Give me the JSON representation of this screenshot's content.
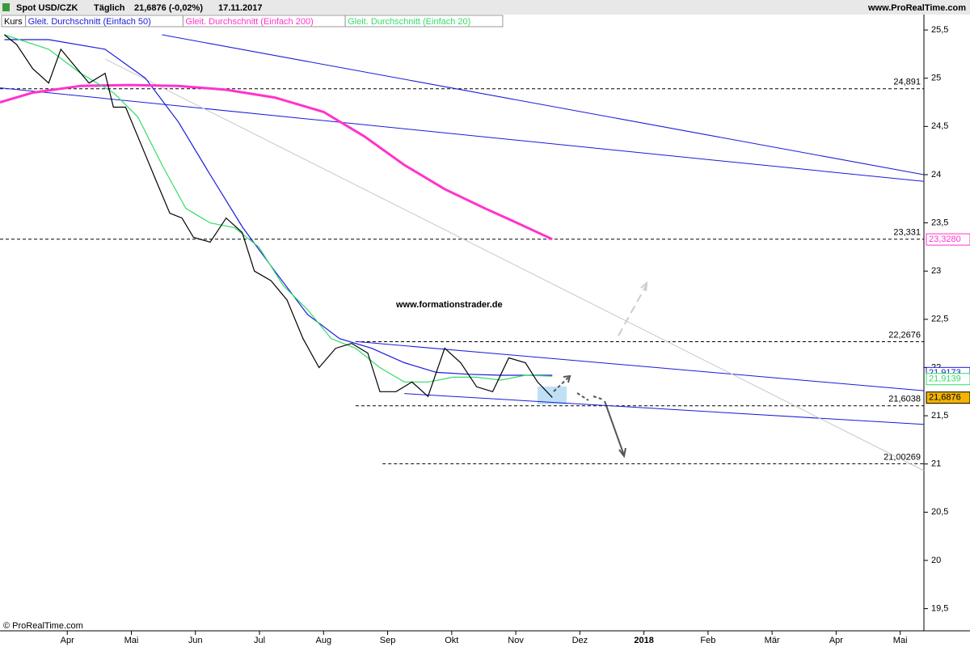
{
  "chart_data": {
    "type": "line",
    "title": "Spot USD/CZK",
    "interval": "Täglich",
    "last_quote": "21,6876 (-0,02%)",
    "date": "17.11.2017",
    "source": "www.ProRealTime.com",
    "watermark": "www.formationstrader.de",
    "copyright": "© ProRealTime.com",
    "xlim": [
      2.95,
      17.37
    ],
    "xticks": [
      {
        "value": 4,
        "label": "Apr"
      },
      {
        "value": 5,
        "label": "Mai"
      },
      {
        "value": 6,
        "label": "Jun"
      },
      {
        "value": 7,
        "label": "Jul"
      },
      {
        "value": 8,
        "label": "Aug"
      },
      {
        "value": 9,
        "label": "Sep"
      },
      {
        "value": 10,
        "label": "Okt"
      },
      {
        "value": 11,
        "label": "Nov"
      },
      {
        "value": 12,
        "label": "Dez"
      },
      {
        "value": 13,
        "label": "2018"
      },
      {
        "value": 14,
        "label": "Feb"
      },
      {
        "value": 15,
        "label": "Mär"
      },
      {
        "value": 16,
        "label": "Apr"
      },
      {
        "value": 17,
        "label": "Mai"
      }
    ],
    "ylim": [
      19.27,
      25.66
    ],
    "yticks": [
      {
        "value": 19.5,
        "label": "19,5"
      },
      20,
      {
        "value": 20.5,
        "label": "20,5"
      },
      21,
      {
        "value": 21.5,
        "label": "21,5"
      },
      22,
      {
        "value": 22.5,
        "label": "22,5"
      },
      23,
      {
        "value": 23.5,
        "label": "23,5"
      },
      24,
      {
        "value": 24.5,
        "label": "24,5"
      },
      25,
      {
        "value": 25.5,
        "label": "25,5"
      }
    ],
    "series": [
      {
        "name": "Kurs",
        "color": "#000000",
        "x": [
          3.02,
          3.21,
          3.46,
          3.71,
          3.9,
          4.15,
          4.34,
          4.59,
          4.72,
          4.91,
          5.16,
          5.41,
          5.6,
          5.79,
          5.97,
          6.23,
          6.48,
          6.73,
          6.92,
          7.18,
          7.43,
          7.68,
          7.93,
          8.19,
          8.44,
          8.69,
          8.88,
          9.13,
          9.38,
          9.63,
          9.89,
          10.14,
          10.39,
          10.64,
          10.89,
          11.15,
          11.34,
          11.57
        ],
        "values": [
          25.45,
          25.35,
          25.1,
          24.95,
          25.3,
          25.1,
          24.95,
          25.05,
          24.7,
          24.7,
          24.3,
          23.9,
          23.6,
          23.55,
          23.35,
          23.3,
          23.55,
          23.4,
          23.0,
          22.9,
          22.7,
          22.3,
          22.0,
          22.2,
          22.25,
          22.15,
          21.75,
          21.75,
          21.85,
          21.7,
          22.2,
          22.05,
          21.8,
          21.75,
          22.1,
          22.05,
          21.85,
          21.69
        ]
      },
      {
        "name": "Gleit. Durchschnitt (Einfach 50)",
        "color": "#1a1adb",
        "x": [
          3.02,
          3.71,
          4.59,
          5.22,
          5.73,
          6.23,
          6.74,
          7.24,
          7.75,
          8.25,
          8.75,
          9.26,
          9.76,
          10.27,
          10.77,
          11.15,
          11.57
        ],
        "values": [
          25.4,
          25.4,
          25.3,
          25.0,
          24.55,
          24.0,
          23.45,
          23.0,
          22.55,
          22.3,
          22.2,
          22.05,
          21.95,
          21.93,
          21.92,
          21.92,
          21.92
        ]
      },
      {
        "name": "Gleit. Durchschnitt (Einfach 200)",
        "color": "#ff33cc",
        "x": [
          2.95,
          3.46,
          4.21,
          4.97,
          5.73,
          6.48,
          7.24,
          8.0,
          8.63,
          9.26,
          9.89,
          10.52,
          11.02,
          11.57
        ],
        "values": [
          24.75,
          24.85,
          24.92,
          24.93,
          24.92,
          24.88,
          24.8,
          24.65,
          24.4,
          24.1,
          23.85,
          23.65,
          23.5,
          23.33
        ]
      },
      {
        "name": "Gleit. Durchschnitt (Einfach 20)",
        "color": "#33dd66",
        "x": [
          3.02,
          3.71,
          4.21,
          4.72,
          5.1,
          5.48,
          5.85,
          6.23,
          6.61,
          6.99,
          7.37,
          7.75,
          8.12,
          8.5,
          8.88,
          9.26,
          9.64,
          10.02,
          10.39,
          10.77,
          11.15,
          11.57
        ],
        "values": [
          25.45,
          25.3,
          25.05,
          24.85,
          24.6,
          24.1,
          23.65,
          23.5,
          23.45,
          23.25,
          22.85,
          22.6,
          22.3,
          22.2,
          22.0,
          21.85,
          21.85,
          21.9,
          21.9,
          21.87,
          21.92,
          21.91
        ]
      }
    ],
    "levels": [
      {
        "value": 24.891,
        "label": "24,891",
        "from": 2.95
      },
      {
        "value": 23.331,
        "label": "23,331",
        "from": 2.95
      },
      {
        "value": 22.2676,
        "label": "22,2676",
        "from": 8.5
      },
      {
        "value": 21.6038,
        "label": "21,6038",
        "from": 8.5
      },
      {
        "value": 21.00269,
        "label": "21,00269",
        "from": 8.92
      }
    ],
    "trendlines": [
      {
        "color": "#1a1adb",
        "x": [
          5.48,
          17.37
        ],
        "values": [
          25.45,
          24.0
        ]
      },
      {
        "color": "#1a1adb",
        "x": [
          2.95,
          17.37
        ],
        "values": [
          24.9,
          23.93
        ]
      },
      {
        "color": "#1a1adb",
        "x": [
          8.5,
          17.37
        ],
        "values": [
          22.27,
          21.76
        ]
      },
      {
        "color": "#1a1adb",
        "x": [
          9.26,
          17.37
        ],
        "values": [
          21.73,
          21.41
        ]
      },
      {
        "color": "#c8c8c8",
        "x": [
          4.59,
          17.37
        ],
        "values": [
          25.2,
          20.93
        ]
      }
    ],
    "price_tags": [
      {
        "value": 23.328,
        "label": "23,3280",
        "color": "#ff33cc",
        "bg": "#ffffff"
      },
      {
        "value": 21.9173,
        "label": "21,9173",
        "color": "#1a1adb",
        "bg": "#ffffff"
      },
      {
        "value": 21.9139,
        "label": "21,9139",
        "color": "#33dd66",
        "bg": "#ffffff"
      },
      {
        "value": 21.6876,
        "label": "21,6876",
        "color": "#000000",
        "bg": "#f5b400"
      }
    ]
  }
}
